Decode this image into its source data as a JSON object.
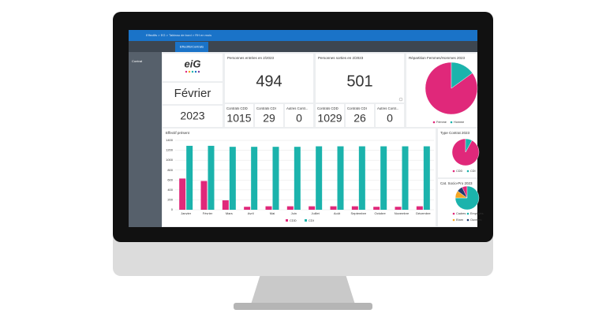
{
  "screen": {
    "breadcrumb": "Effectifs > EG > Tableau de bord > RH en mois",
    "tabs": [
      "Effectifs/Contrats"
    ],
    "sidebar": "Contrat",
    "logo": "eiG",
    "month": "Février",
    "year": "2023",
    "entries": {
      "label": "Personnes entrées en 2/2023",
      "value": 494
    },
    "exits": {
      "label": "Personnes sorties en 2/2023",
      "value": 501
    },
    "contracts": [
      {
        "label": "Contrats CDD",
        "value": 1015
      },
      {
        "label": "Contrats CDI",
        "value": 29
      },
      {
        "label": "Autres Contr...",
        "value": 0
      },
      {
        "label": "Contrats CDD",
        "value": 1029
      },
      {
        "label": "Contrats CDI",
        "value": 26
      },
      {
        "label": "Autres Contr...",
        "value": 0
      }
    ]
  },
  "chart_data": [
    {
      "type": "bar",
      "title": "Effectif présent",
      "categories": [
        "Janvier",
        "Février",
        "Mars",
        "Avril",
        "Mai",
        "Juin",
        "Juillet",
        "Août",
        "Septembre",
        "Octobre",
        "Novembre",
        "Décembre"
      ],
      "series": [
        {
          "name": "CDD",
          "color": "#e0287a",
          "values": [
            630,
            580,
            190,
            60,
            70,
            70,
            70,
            70,
            70,
            60,
            60,
            70
          ]
        },
        {
          "name": "CDI",
          "color": "#1bb3ac",
          "values": [
            1290,
            1290,
            1270,
            1270,
            1270,
            1270,
            1280,
            1280,
            1280,
            1280,
            1280,
            1280
          ]
        }
      ],
      "ylim": [
        0,
        1400
      ],
      "yticks": [
        0,
        200,
        400,
        600,
        800,
        1000,
        1200,
        1400
      ],
      "grid": true
    },
    {
      "type": "pie",
      "title": "Répartition Femmes/Hommes 2023",
      "categories": [
        "Femme",
        "Homme"
      ],
      "values": [
        85,
        15
      ],
      "colors": [
        "#e0287a",
        "#1bb3ac"
      ]
    },
    {
      "type": "pie",
      "title": "Type Contrat 2023",
      "categories": [
        "CDD",
        "CDI"
      ],
      "values": [
        92,
        8
      ],
      "colors": [
        "#e0287a",
        "#1bb3ac"
      ]
    },
    {
      "type": "pie",
      "title": "Cat. Socio-Pro 2023",
      "categories": [
        "Cadres",
        "Employés",
        "Etam",
        "Ouvriers"
      ],
      "values": [
        7,
        75,
        10,
        8
      ],
      "colors": [
        "#e0287a",
        "#1bb3ac",
        "#f5a623",
        "#1f3a6e"
      ]
    }
  ]
}
